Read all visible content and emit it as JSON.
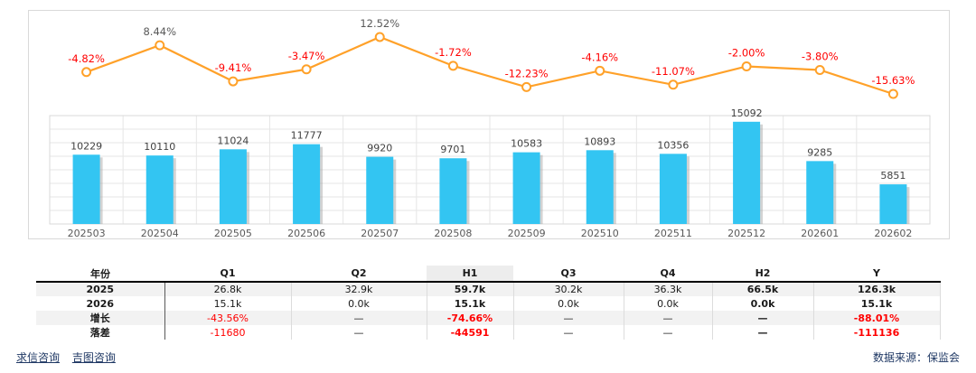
{
  "chart_data": {
    "type": "combo",
    "title": "",
    "categories": [
      "202503",
      "202504",
      "202505",
      "202506",
      "202507",
      "202508",
      "202509",
      "202510",
      "202511",
      "202512",
      "202601",
      "202602"
    ],
    "series": [
      {
        "name": "growth-rate-line",
        "type": "line",
        "values": [
          -4.82,
          8.44,
          -9.41,
          -3.47,
          12.52,
          -1.72,
          -12.23,
          -4.16,
          -11.07,
          -2.0,
          -3.8,
          -15.63
        ],
        "labels": [
          "-4.82%",
          "8.44%",
          "-9.41%",
          "-3.47%",
          "12.52%",
          "-1.72%",
          "-12.23%",
          "-4.16%",
          "-11.07%",
          "-2.00%",
          "-3.80%",
          "-15.63%"
        ]
      },
      {
        "name": "monthly-value-bars",
        "type": "bar",
        "values": [
          10229,
          10110,
          11024,
          11777,
          9920,
          9701,
          10583,
          10893,
          10356,
          15092,
          9285,
          5851
        ],
        "labels": [
          "10229",
          "10110",
          "11024",
          "11777",
          "9920",
          "9701",
          "10583",
          "10893",
          "10356",
          "15092",
          "9285",
          "5851"
        ]
      }
    ],
    "bar_ylim": [
      0,
      16000
    ],
    "grid": true,
    "legend_position": "none"
  },
  "table": {
    "headers": [
      "年份",
      "Q1",
      "Q2",
      "H1",
      "Q3",
      "Q4",
      "H2",
      "Y"
    ],
    "rows": [
      [
        "2025",
        "26.8k",
        "32.9k",
        "59.7k",
        "30.2k",
        "36.3k",
        "66.5k",
        "126.3k"
      ],
      [
        "2026",
        "15.1k",
        "0.0k",
        "15.1k",
        "0.0k",
        "0.0k",
        "0.0k",
        "15.1k"
      ],
      [
        "增长",
        "-43.56%",
        "—",
        "-74.66%",
        "—",
        "—",
        "—",
        "-88.01%"
      ],
      [
        "落差",
        "-11680",
        "—",
        "-44591",
        "—",
        "—",
        "—",
        "-111136"
      ]
    ],
    "bold_columns": [
      3,
      6,
      7
    ],
    "striped_row_indexes": [
      0,
      2
    ],
    "shaded_header_index": 3
  },
  "footer": {
    "links": [
      "求信咨询",
      "吉图咨询"
    ],
    "source": "数据来源：保监会"
  },
  "colors": {
    "bar": "#33C5F2",
    "bar_shadow": "#9e9e9e",
    "line": "#FFA129",
    "marker_fill": "#ffffff",
    "negative_label": "#FF0000",
    "positive_label": "#595959",
    "axis_label": "#595959",
    "bar_value_label": "#404040",
    "gridline": "#e6e6e6",
    "plot_border": "#d9d9d9",
    "link": "#1F3864",
    "stripe": "#f2f2f2"
  }
}
